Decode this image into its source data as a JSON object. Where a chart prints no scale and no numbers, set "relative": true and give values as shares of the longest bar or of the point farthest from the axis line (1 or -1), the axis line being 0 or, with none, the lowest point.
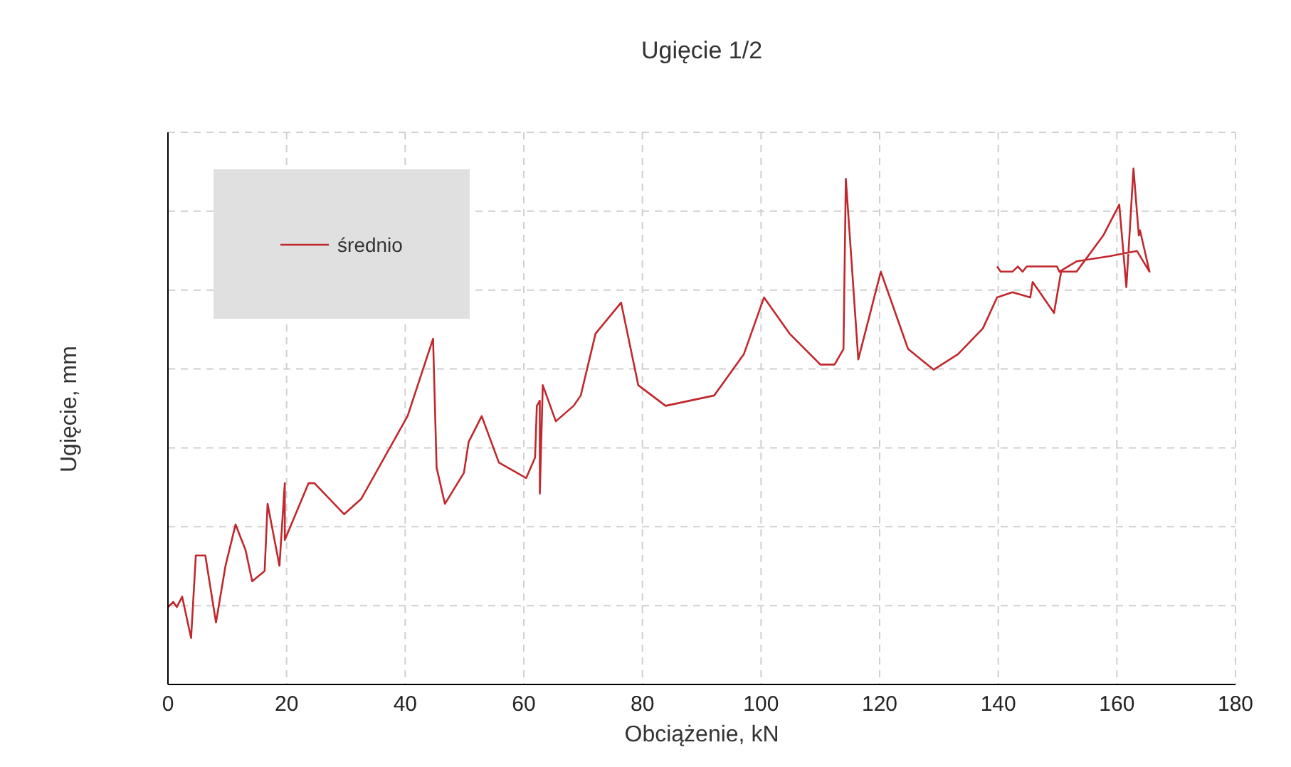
{
  "chart_data": {
    "type": "line",
    "title": "Ugięcie 1/2",
    "xlabel": "Obciążenie, kN",
    "ylabel": "Ugięcie, mm",
    "xlim": [
      0,
      180
    ],
    "xticks": [
      0,
      20,
      40,
      60,
      80,
      100,
      120,
      140,
      160,
      180
    ],
    "relative": true,
    "grid": true,
    "legend": "top left",
    "series": [
      {
        "name": "średnio",
        "color": "#c0282d",
        "x": [
          0,
          0.9,
          1.5,
          2.4,
          3.9,
          4.7,
          6.3,
          8.1,
          9.7,
          11.4,
          13.1,
          14.2,
          16.3,
          16.8,
          18.8,
          19.7,
          19.7,
          23.7,
          24.7,
          29.7,
          32.6,
          40.4,
          44.7,
          45.3,
          46.7,
          49.9,
          50.7,
          52.9,
          55.8,
          60.4,
          61.9,
          62.2,
          62.7,
          62.7,
          63.2,
          65.4,
          68.4,
          69.6,
          72.1,
          76.4,
          79.3,
          83.9,
          92.1,
          97.1,
          100.5,
          104.8,
          110.0,
          112.4,
          113.9,
          114.3,
          116.4,
          120.2,
          124.8,
          129.1,
          133.2,
          137.4,
          139.8,
          142.4,
          145.4,
          145.8,
          149.4,
          150.6,
          153.2,
          157.7,
          160.4,
          161.6,
          162.8,
          163.7,
          163.9,
          165.5,
          163.4,
          158.8,
          153.2,
          150.3,
          149.9,
          148.4,
          147.2,
          146.0,
          144.8,
          144.1,
          143.3,
          142.4,
          140.4,
          139.8
        ],
        "values": [
          0.15,
          0.16,
          0.15,
          0.17,
          0.09,
          0.25,
          0.25,
          0.12,
          0.23,
          0.31,
          0.26,
          0.2,
          0.22,
          0.35,
          0.23,
          0.39,
          0.28,
          0.39,
          0.39,
          0.33,
          0.36,
          0.52,
          0.67,
          0.42,
          0.35,
          0.41,
          0.47,
          0.52,
          0.43,
          0.4,
          0.44,
          0.54,
          0.55,
          0.37,
          0.58,
          0.51,
          0.54,
          0.56,
          0.68,
          0.74,
          0.58,
          0.54,
          0.56,
          0.64,
          0.75,
          0.68,
          0.62,
          0.62,
          0.65,
          0.98,
          0.63,
          0.8,
          0.65,
          0.61,
          0.64,
          0.69,
          0.75,
          0.76,
          0.75,
          0.78,
          0.72,
          0.8,
          0.8,
          0.87,
          0.93,
          0.77,
          1,
          0.87,
          0.88,
          0.8,
          0.84,
          0.83,
          0.82,
          0.8,
          0.81,
          0.81,
          0.81,
          0.81,
          0.81,
          0.8,
          0.81,
          0.8,
          0.8,
          0.81
        ]
      }
    ]
  }
}
